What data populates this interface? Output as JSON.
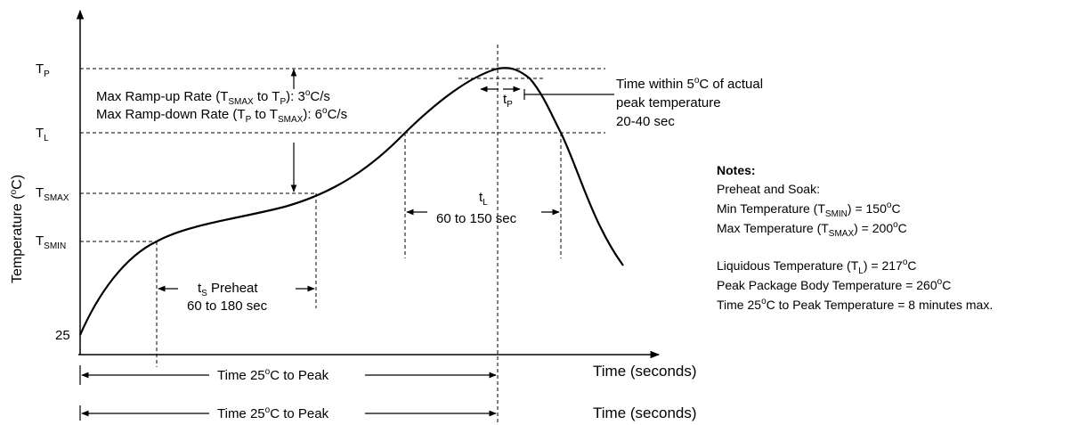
{
  "y_axis": {
    "label": "Temperature (",
    "label_sup": "o",
    "label_end": "C)",
    "ticks": {
      "tp": "T",
      "tp_sub": "P",
      "tl": "T",
      "tl_sub": "L",
      "tsmax": "T",
      "tsmax_sub": "SMAX",
      "tsmin": "T",
      "tsmin_sub": "SMIN",
      "t25": "25"
    }
  },
  "x_axis": {
    "label": "Time (seconds)",
    "ghost_label": "Time (seconds)"
  },
  "ramp": {
    "line1_a": "Max Ramp-up Rate (T",
    "line1_sub1": "SMAX",
    "line1_b": " to T",
    "line1_sub2": "P",
    "line1_c": "): 3",
    "line1_sup": "o",
    "line1_d": "C/s",
    "line2_a": "Max Ramp-down Rate (T",
    "line2_sub1": "P",
    "line2_b": " to T",
    "line2_sub2": "SMAX",
    "line2_c": "): 6",
    "line2_sup": "o",
    "line2_d": "C/s"
  },
  "tp_label": {
    "t": "t",
    "sub": "P"
  },
  "peak_note": {
    "line1_a": "Time within 5",
    "line1_sup": "o",
    "line1_b": "C of actual",
    "line2": "peak temperature",
    "line3": "20-40 sec"
  },
  "tl_label": {
    "t": "t",
    "sub": "L",
    "range": "60 to 150 sec"
  },
  "ts_label": {
    "t": "t",
    "sub": "S",
    "word": " Preheat",
    "range": "60 to 180 sec"
  },
  "time_peak": {
    "a": "Time 25",
    "sup": "o",
    "b": "C to Peak"
  },
  "time_peak_ghost": {
    "a": "Time 25",
    "sup": "o",
    "b": "C to Peak"
  },
  "notes": {
    "title": "Notes:",
    "preheat": "Preheat and Soak:",
    "min_a": "Min Temperature (T",
    "min_sub": "SMIN",
    "min_b": ") = 150",
    "min_sup": "o",
    "min_c": "C",
    "max_a": "Max Temperature (T",
    "max_sub": "SMAX",
    "max_b": ") = 200",
    "max_sup": "o",
    "max_c": "C",
    "liq_a": "Liquidous Temperature (T",
    "liq_sub": "L",
    "liq_b": ") = 217",
    "liq_sup": "o",
    "liq_c": "C",
    "peak_a": "Peak Package Body Temperature = 260",
    "peak_sup": "o",
    "peak_b": "C",
    "time_a": "Time 25",
    "time_sup": "o",
    "time_b": "C to Peak Temperature = 8 minutes max."
  }
}
